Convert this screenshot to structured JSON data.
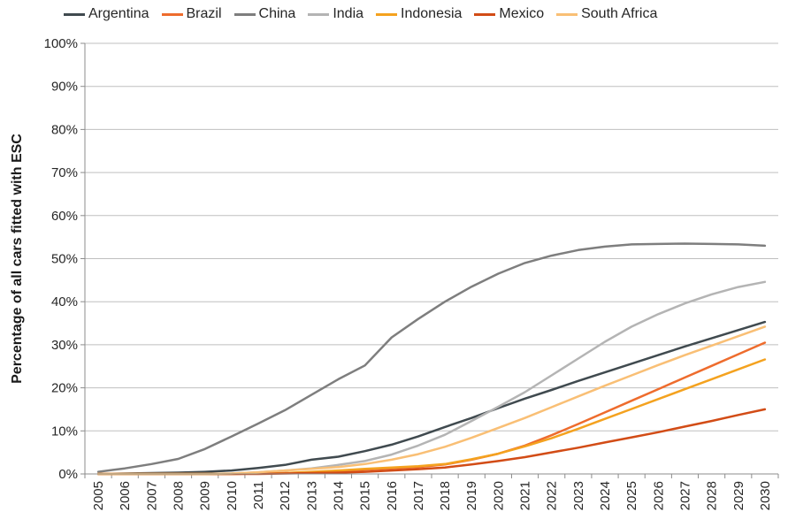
{
  "chart_data": {
    "type": "line",
    "title": "",
    "xlabel": "",
    "ylabel": "Percentage of all cars fitted with ESC",
    "ylim": [
      0,
      100
    ],
    "y_ticks": [
      "0%",
      "10%",
      "20%",
      "30%",
      "40%",
      "50%",
      "60%",
      "70%",
      "80%",
      "90%",
      "100%"
    ],
    "grid": true,
    "legend_position": "top",
    "x": [
      "2005",
      "2006",
      "2007",
      "2008",
      "2009",
      "2010",
      "2011",
      "2012",
      "2013",
      "2014",
      "2015",
      "2016",
      "2017",
      "2018",
      "2019",
      "2020",
      "2021",
      "2022",
      "2023",
      "2024",
      "2025",
      "2026",
      "2027",
      "2028",
      "2029",
      "2030"
    ],
    "series": [
      {
        "name": "Argentina",
        "color": "#404a4f",
        "values": [
          0,
          0.1,
          0.2,
          0.3,
          0.5,
          0.8,
          1.4,
          2.1,
          3.3,
          4.0,
          5.3,
          6.8,
          8.7,
          10.9,
          13.0,
          15.3,
          17.5,
          19.5,
          21.6,
          23.6,
          25.6,
          27.6,
          29.6,
          31.5,
          33.4,
          35.3
        ]
      },
      {
        "name": "Brazil",
        "color": "#ee6c2d",
        "values": [
          0,
          0,
          0,
          0,
          0,
          0,
          0.1,
          0.2,
          0.4,
          0.7,
          1.0,
          1.3,
          1.6,
          2.2,
          3.3,
          4.7,
          6.6,
          9.0,
          11.6,
          14.3,
          17.0,
          19.7,
          22.4,
          25.1,
          27.8,
          30.5
        ]
      },
      {
        "name": "China",
        "color": "#7e7e7e",
        "values": [
          0.5,
          1.3,
          2.3,
          3.5,
          5.8,
          8.7,
          11.7,
          14.8,
          18.4,
          22.0,
          25.2,
          31.7,
          36.0,
          40.0,
          43.5,
          46.5,
          49.0,
          50.7,
          52.0,
          52.8,
          53.3,
          53.4,
          53.5,
          53.4,
          53.3,
          53.0
        ]
      },
      {
        "name": "India",
        "color": "#b4b4b4",
        "values": [
          0,
          0,
          0,
          0,
          0,
          0.1,
          0.4,
          0.8,
          1.3,
          2.1,
          3.0,
          4.5,
          6.6,
          9.1,
          12.3,
          15.6,
          19.0,
          22.9,
          26.8,
          30.7,
          34.2,
          37.1,
          39.6,
          41.7,
          43.4,
          44.6
        ]
      },
      {
        "name": "Indonesia",
        "color": "#f4a21f",
        "values": [
          0,
          0,
          0,
          0,
          0,
          0,
          0.1,
          0.2,
          0.5,
          0.8,
          1.2,
          1.5,
          1.8,
          2.3,
          3.4,
          4.7,
          6.4,
          8.3,
          10.5,
          12.8,
          15.1,
          17.4,
          19.7,
          22.0,
          24.3,
          26.6
        ]
      },
      {
        "name": "Mexico",
        "color": "#d24c16",
        "values": [
          0,
          0,
          0,
          0,
          0,
          0,
          0,
          0.1,
          0.2,
          0.3,
          0.5,
          0.8,
          1.1,
          1.5,
          2.2,
          3.0,
          3.9,
          5.0,
          6.1,
          7.3,
          8.5,
          9.7,
          11.0,
          12.3,
          13.7,
          15.0
        ]
      },
      {
        "name": "South Africa",
        "color": "#f9bf75",
        "values": [
          0,
          0,
          0,
          0,
          0,
          0.1,
          0.4,
          0.8,
          1.2,
          1.6,
          2.3,
          3.3,
          4.6,
          6.3,
          8.4,
          10.7,
          13.0,
          15.5,
          18.0,
          20.5,
          22.9,
          25.3,
          27.6,
          29.8,
          32.0,
          34.2
        ]
      }
    ]
  }
}
